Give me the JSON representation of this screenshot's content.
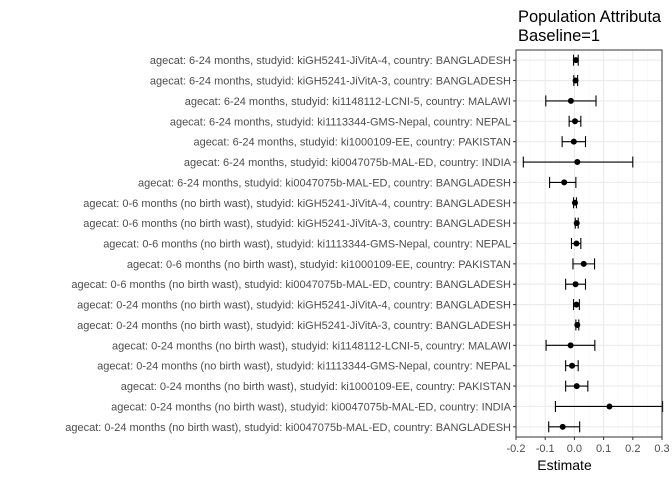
{
  "chart_data": {
    "type": "scatter",
    "style": "point-with-horizontal-errorbars",
    "title": "Population Attributa",
    "subtitle": "Baseline=1",
    "xlabel": "Estimate",
    "ylabel": "",
    "xlim": [
      -0.2,
      0.3
    ],
    "xticks": [
      -0.2,
      -0.1,
      0.0,
      0.1,
      0.2,
      0.3
    ],
    "xtick_labels": [
      "-0.2",
      "-0.1",
      "0.0",
      "0.1",
      "0.2",
      "0.3"
    ],
    "grid": true,
    "legend": "none",
    "colors": {
      "point": "#000000",
      "grid_major": "#ebebeb",
      "grid_minor": "#f5f5f5",
      "panel_border": "#333333",
      "label": "#4d4d4d"
    },
    "rows": [
      {
        "label": "agecat: 6-24 months, studyid: kiGH5241-JiVitA-4, country: BANGLADESH",
        "estimate": 0.005,
        "lower": -0.003,
        "upper": 0.013
      },
      {
        "label": "agecat: 6-24 months, studyid: kiGH5241-JiVitA-3, country: BANGLADESH",
        "estimate": 0.004,
        "lower": -0.002,
        "upper": 0.011
      },
      {
        "label": "agecat: 6-24 months, studyid: ki1148112-LCNI-5, country: MALAWI",
        "estimate": -0.012,
        "lower": -0.098,
        "upper": 0.074
      },
      {
        "label": "agecat: 6-24 months, studyid: ki1113344-GMS-Nepal, country: NEPAL",
        "estimate": 0.002,
        "lower": -0.018,
        "upper": 0.022
      },
      {
        "label": "agecat: 6-24 months, studyid: ki1000109-EE, country: PAKISTAN",
        "estimate": -0.002,
        "lower": -0.042,
        "upper": 0.038
      },
      {
        "label": "agecat: 6-24 months, studyid: ki0047075b-MAL-ED, country: INDIA",
        "estimate": 0.01,
        "lower": -0.175,
        "upper": 0.2
      },
      {
        "label": "agecat: 6-24 months, studyid: ki0047075b-MAL-ED, country: BANGLADESH",
        "estimate": -0.035,
        "lower": -0.085,
        "upper": 0.005
      },
      {
        "label": "agecat: 0-6 months (no birth wast), studyid: kiGH5241-JiVitA-4, country: BANGLADESH",
        "estimate": 0.002,
        "lower": -0.003,
        "upper": 0.007
      },
      {
        "label": "agecat: 0-6 months (no birth wast), studyid: kiGH5241-JiVitA-3, country: BANGLADESH",
        "estimate": 0.008,
        "lower": 0.003,
        "upper": 0.013
      },
      {
        "label": "agecat: 0-6 months (no birth wast), studyid: ki1113344-GMS-Nepal, country: NEPAL",
        "estimate": 0.007,
        "lower": -0.01,
        "upper": 0.022
      },
      {
        "label": "agecat: 0-6 months (no birth wast), studyid: ki1000109-EE, country: PAKISTAN",
        "estimate": 0.032,
        "lower": -0.005,
        "upper": 0.069
      },
      {
        "label": "agecat: 0-6 months (no birth wast), studyid: ki0047075b-MAL-ED, country: BANGLADESH",
        "estimate": 0.004,
        "lower": -0.03,
        "upper": 0.038
      },
      {
        "label": "agecat: 0-24 months (no birth wast), studyid: kiGH5241-JiVitA-4, country: BANGLADESH",
        "estimate": 0.007,
        "lower": -0.003,
        "upper": 0.017
      },
      {
        "label": "agecat: 0-24 months (no birth wast), studyid: kiGH5241-JiVitA-3, country: BANGLADESH",
        "estimate": 0.01,
        "lower": 0.005,
        "upper": 0.015
      },
      {
        "label": "agecat: 0-24 months (no birth wast), studyid: ki1148112-LCNI-5, country: MALAWI",
        "estimate": -0.013,
        "lower": -0.097,
        "upper": 0.07
      },
      {
        "label": "agecat: 0-24 months (no birth wast), studyid: ki1113344-GMS-Nepal, country: NEPAL",
        "estimate": -0.008,
        "lower": -0.03,
        "upper": 0.013
      },
      {
        "label": "agecat: 0-24 months (no birth wast), studyid: ki1000109-EE, country: PAKISTAN",
        "estimate": 0.008,
        "lower": -0.03,
        "upper": 0.046
      },
      {
        "label": "agecat: 0-24 months (no birth wast), studyid: ki0047075b-MAL-ED, country: INDIA",
        "estimate": 0.12,
        "lower": -0.065,
        "upper": 0.302
      },
      {
        "label": "agecat: 0-24 months (no birth wast), studyid: ki0047075b-MAL-ED, country: BANGLADESH",
        "estimate": -0.04,
        "lower": -0.088,
        "upper": 0.018
      }
    ]
  }
}
